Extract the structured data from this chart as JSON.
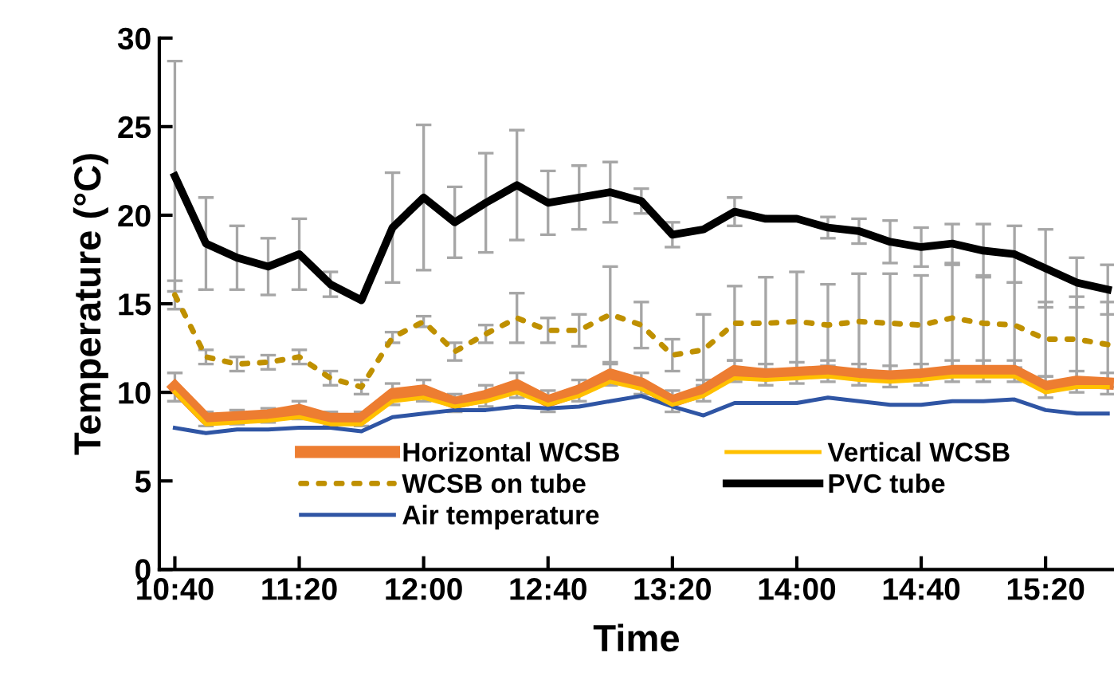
{
  "chart_data": {
    "type": "line",
    "xlabel": "Time",
    "ylabel": "Temperature (°C)",
    "x": [
      10.6667,
      10.8333,
      11,
      11.1667,
      11.3333,
      11.5,
      11.6667,
      11.8333,
      12,
      12.1667,
      12.3333,
      12.5,
      12.6667,
      12.8333,
      13,
      13.1667,
      13.3333,
      13.5,
      13.6667,
      13.8333,
      14,
      14.1667,
      14.3333,
      14.5,
      14.6667,
      14.8333,
      15,
      15.1667,
      15.3333,
      15.5,
      15.6667
    ],
    "xlim": [
      10.5833,
      15.7
    ],
    "xticks": [
      {
        "value": 10.6667,
        "label": "10:40"
      },
      {
        "value": 11.3333,
        "label": "11:20"
      },
      {
        "value": 12,
        "label": "12:00"
      },
      {
        "value": 12.6667,
        "label": "12:40"
      },
      {
        "value": 13.3333,
        "label": "13:20"
      },
      {
        "value": 14,
        "label": "14:00"
      },
      {
        "value": 14.6667,
        "label": "14:40"
      },
      {
        "value": 15.3333,
        "label": "15:20"
      }
    ],
    "ylim": [
      0,
      30
    ],
    "yticks": [
      0,
      5,
      10,
      15,
      20,
      25,
      30
    ],
    "grid": false,
    "legend": "bottom",
    "marker": "none",
    "series": [
      {
        "name": "Horizontal WCSB",
        "color": "#ed7d31",
        "line_style": "solid",
        "values": [
          10.3,
          8.5,
          8.6,
          8.7,
          9.0,
          8.5,
          8.5,
          9.9,
          10.1,
          9.4,
          9.8,
          10.4,
          9.5,
          10.1,
          11.0,
          10.5,
          9.5,
          10.1,
          11.2,
          11.0,
          11.1,
          11.2,
          11.0,
          10.9,
          11.0,
          11.2,
          11.2,
          11.2,
          10.3,
          10.6,
          10.5
        ],
        "errors": [
          0.8,
          0.4,
          0.4,
          0.4,
          0.5,
          0.4,
          0.4,
          0.6,
          0.6,
          0.5,
          0.6,
          0.7,
          0.6,
          0.6,
          0.6,
          0.6,
          0.6,
          0.6,
          0.6,
          0.6,
          0.6,
          0.6,
          0.6,
          0.6,
          0.6,
          0.6,
          0.6,
          0.6,
          0.6,
          0.6,
          0.6
        ]
      },
      {
        "name": "WCSB on tube",
        "color": "#bf9000",
        "line_style": "dotted",
        "values": [
          15.5,
          12.0,
          11.6,
          11.7,
          12.0,
          10.8,
          10.3,
          13.1,
          14.0,
          12.3,
          13.3,
          14.2,
          13.5,
          13.5,
          14.4,
          13.8,
          12.1,
          12.4,
          13.9,
          13.9,
          14.0,
          13.8,
          14.0,
          13.9,
          13.8,
          14.2,
          13.9,
          13.8,
          13.0,
          13.0,
          12.7
        ],
        "errors": [
          0.8,
          0.4,
          0.4,
          0.4,
          0.4,
          0.4,
          0.4,
          0.3,
          0.3,
          0.5,
          0.5,
          1.4,
          0.7,
          0.9,
          2.7,
          1.3,
          0.9,
          2.0,
          2.1,
          2.6,
          2.8,
          2.3,
          2.7,
          2.8,
          2.8,
          3.0,
          2.7,
          2.4,
          2.1,
          2.4,
          2.4
        ]
      },
      {
        "name": "Air temperature",
        "color": "#2f55a4",
        "line_style": "solid",
        "values": [
          8.0,
          7.7,
          7.9,
          7.9,
          8.0,
          8.0,
          7.8,
          8.6,
          8.8,
          9.0,
          9.0,
          9.2,
          9.1,
          9.2,
          9.5,
          9.8,
          9.2,
          8.7,
          9.4,
          9.4,
          9.4,
          9.7,
          9.5,
          9.3,
          9.3,
          9.5,
          9.5,
          9.6,
          9.0,
          8.8,
          8.8
        ]
      },
      {
        "name": "Vertical WCSB",
        "color": "#ffc000",
        "line_style": "solid",
        "values": [
          10.0,
          8.2,
          8.3,
          8.4,
          8.6,
          8.2,
          8.2,
          9.5,
          9.7,
          9.2,
          9.5,
          10.0,
          9.3,
          9.8,
          10.6,
          10.2,
          9.3,
          9.8,
          10.8,
          10.7,
          10.8,
          10.9,
          10.7,
          10.6,
          10.7,
          10.9,
          10.9,
          10.9,
          10.0,
          10.3,
          10.3
        ]
      },
      {
        "name": "PVC tube",
        "color": "#000000",
        "line_style": "solid",
        "values": [
          22.2,
          18.4,
          17.6,
          17.1,
          17.8,
          16.1,
          15.2,
          19.3,
          21.0,
          19.6,
          20.7,
          21.7,
          20.7,
          21.0,
          21.3,
          20.8,
          18.9,
          19.2,
          20.2,
          19.8,
          19.8,
          19.3,
          19.1,
          18.5,
          18.2,
          18.4,
          18.0,
          17.8,
          17.0,
          16.2,
          15.8
        ],
        "errors": [
          6.5,
          2.6,
          1.8,
          1.6,
          2.0,
          0.7,
          null,
          3.1,
          4.1,
          2.0,
          2.8,
          3.1,
          1.8,
          1.8,
          1.7,
          0.7,
          0.7,
          null,
          0.8,
          null,
          null,
          0.6,
          0.7,
          1.2,
          1.1,
          1.1,
          1.5,
          1.6,
          2.2,
          1.4,
          1.4
        ]
      }
    ]
  }
}
